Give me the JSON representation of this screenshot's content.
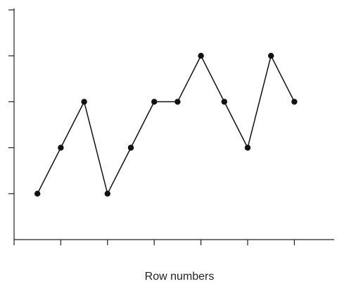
{
  "chart_data": {
    "type": "line",
    "title": "",
    "xlabel": "Row numbers",
    "ylabel": "",
    "x": [
      1,
      2,
      3,
      4,
      5,
      6,
      7,
      8,
      9,
      10,
      11,
      12
    ],
    "series": [
      {
        "values": [
          1,
          2,
          3,
          1,
          2,
          3,
          3,
          4,
          3,
          2,
          4,
          3
        ]
      }
    ],
    "xlim": [
      0,
      13.5
    ],
    "ylim": [
      0,
      5
    ],
    "x_ticks": [
      0,
      2,
      4,
      6,
      8,
      10,
      12
    ],
    "y_ticks": [
      1,
      2,
      3,
      4,
      5
    ],
    "tick_labels_shown": false,
    "grid": false,
    "legend": "none",
    "colors": {
      "line": "#111111",
      "marker": "#111111",
      "axis": "#222222"
    }
  }
}
